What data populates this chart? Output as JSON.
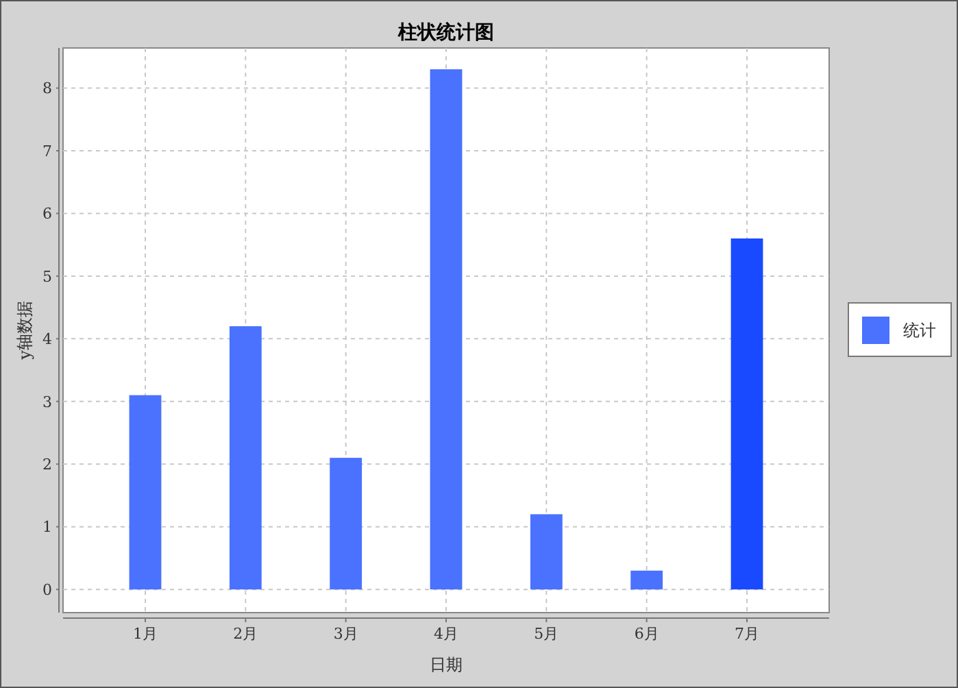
{
  "chart_data": {
    "type": "bar",
    "title": "柱状统计图",
    "xlabel": "日期",
    "ylabel": "y轴数据",
    "categories": [
      "1月",
      "2月",
      "3月",
      "4月",
      "5月",
      "6月",
      "7月"
    ],
    "series": [
      {
        "name": "统计",
        "color": "#4a72ff",
        "colors": [
          "#4a72ff",
          "#4a72ff",
          "#4a72ff",
          "#4a72ff",
          "#4a72ff",
          "#4a72ff",
          "#1a4aff"
        ],
        "values": [
          3.1,
          4.2,
          2.1,
          8.3,
          1.2,
          0.3,
          5.6
        ]
      }
    ],
    "ylim": [
      -0.37,
      8.64
    ],
    "yticks": [
      0,
      1,
      2,
      3,
      4,
      5,
      6,
      7,
      8
    ],
    "grid": true,
    "legend": "right"
  }
}
